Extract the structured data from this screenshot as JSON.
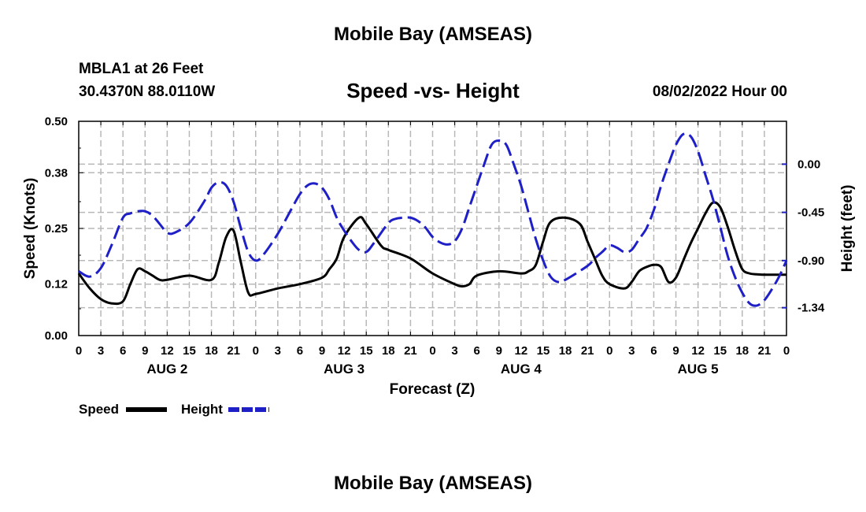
{
  "header": {
    "title": "Mobile Bay (AMSEAS)",
    "station": "MBLA1 at 26 Feet",
    "coords": "30.4370N  88.0110W",
    "subtitle": "Speed -vs- Height",
    "datetime": "08/02/2022 Hour 00",
    "footer_title": "Mobile Bay (AMSEAS)"
  },
  "chart_data": {
    "type": "line",
    "title": "Speed -vs- Height",
    "xlabel": "Forecast (Z)",
    "ylabel": "Speed (Knots)",
    "y2label": "Height (feet)",
    "xlim": [
      0,
      96
    ],
    "ylim": [
      0,
      0.5
    ],
    "y2lim": [
      -1.6,
      0.4
    ],
    "x_tick_labels": [
      "0",
      "3",
      "6",
      "9",
      "12",
      "15",
      "18",
      "21",
      "0",
      "3",
      "6",
      "9",
      "12",
      "15",
      "18",
      "21",
      "0",
      "3",
      "6",
      "9",
      "12",
      "15",
      "18",
      "21",
      "0",
      "3",
      "6",
      "9",
      "12",
      "15",
      "18",
      "21",
      "0"
    ],
    "day_labels": [
      {
        "label": "AUG 2",
        "hour": 12
      },
      {
        "label": "AUG 3",
        "hour": 36
      },
      {
        "label": "AUG 4",
        "hour": 60
      },
      {
        "label": "AUG 5",
        "hour": 84
      }
    ],
    "y_ticks": [
      0.0,
      0.12,
      0.25,
      0.38,
      0.5
    ],
    "y_tick_labels": [
      "0.00",
      "0.12",
      "0.25",
      "0.38",
      "0.50"
    ],
    "y2_ticks": [
      0.0,
      -0.45,
      -0.9,
      -1.34
    ],
    "y2_tick_labels": [
      "0.00",
      "-0.45",
      "-0.90",
      "-1.34"
    ],
    "legend": [
      "Speed",
      "Height"
    ],
    "colors": {
      "speed": "#000000",
      "height": "#1f1fc8",
      "grid": "#b8b8b8"
    },
    "series": [
      {
        "name": "Speed",
        "axis": "left",
        "x": [
          0,
          1.5,
          3,
          4.5,
          6,
          7,
          8,
          9,
          10,
          11,
          12,
          15,
          18,
          19,
          20,
          21,
          22,
          23,
          24,
          27,
          30,
          33,
          34,
          35,
          36,
          38,
          39,
          41,
          42,
          45,
          48,
          51,
          52,
          53,
          54,
          57,
          60,
          61,
          62,
          63,
          64,
          66,
          68,
          69,
          70,
          71,
          72,
          74,
          75,
          76,
          77,
          78,
          79,
          80,
          81,
          82,
          83,
          84,
          85,
          86,
          87,
          88,
          89,
          90,
          91,
          92,
          93,
          96
        ],
        "values": [
          0.145,
          0.11,
          0.085,
          0.075,
          0.08,
          0.12,
          0.155,
          0.15,
          0.14,
          0.13,
          0.13,
          0.14,
          0.13,
          0.17,
          0.23,
          0.245,
          0.17,
          0.1,
          0.097,
          0.11,
          0.12,
          0.135,
          0.155,
          0.18,
          0.23,
          0.275,
          0.26,
          0.21,
          0.2,
          0.18,
          0.145,
          0.12,
          0.115,
          0.12,
          0.14,
          0.15,
          0.145,
          0.15,
          0.165,
          0.22,
          0.265,
          0.275,
          0.26,
          0.22,
          0.18,
          0.14,
          0.12,
          0.11,
          0.125,
          0.15,
          0.16,
          0.165,
          0.16,
          0.125,
          0.135,
          0.175,
          0.215,
          0.25,
          0.285,
          0.31,
          0.3,
          0.255,
          0.2,
          0.155,
          0.145,
          0.143,
          0.142,
          0.142
        ]
      },
      {
        "name": "Height",
        "axis": "right",
        "x": [
          0,
          1.5,
          3,
          4.5,
          6,
          7,
          8,
          9,
          10,
          11,
          12,
          13,
          15,
          17,
          18,
          19,
          20,
          21,
          22,
          23,
          24,
          25,
          27,
          29,
          30,
          31,
          32,
          33,
          34,
          35,
          36,
          37,
          38,
          39,
          40,
          42,
          43,
          44,
          45,
          46,
          47,
          48,
          49,
          50,
          51,
          52,
          53,
          54,
          55,
          56,
          57,
          58,
          59,
          60,
          61,
          62,
          63,
          64,
          65,
          66,
          69,
          70,
          71,
          72,
          73,
          74,
          75,
          76,
          77,
          78,
          79,
          80,
          81,
          82,
          83,
          84,
          85,
          86,
          87,
          88,
          89,
          90,
          91,
          92,
          93,
          94,
          95,
          96
        ],
        "values": [
          -1.0,
          -1.05,
          -0.97,
          -0.75,
          -0.5,
          -0.46,
          -0.44,
          -0.44,
          -0.48,
          -0.56,
          -0.64,
          -0.64,
          -0.55,
          -0.35,
          -0.22,
          -0.17,
          -0.2,
          -0.35,
          -0.6,
          -0.82,
          -0.9,
          -0.85,
          -0.65,
          -0.4,
          -0.28,
          -0.2,
          -0.18,
          -0.22,
          -0.33,
          -0.5,
          -0.62,
          -0.72,
          -0.8,
          -0.82,
          -0.74,
          -0.55,
          -0.51,
          -0.5,
          -0.5,
          -0.53,
          -0.59,
          -0.68,
          -0.73,
          -0.75,
          -0.72,
          -0.6,
          -0.4,
          -0.2,
          0.0,
          0.18,
          0.22,
          0.18,
          0.0,
          -0.2,
          -0.45,
          -0.7,
          -0.9,
          -1.05,
          -1.1,
          -1.08,
          -0.95,
          -0.88,
          -0.82,
          -0.76,
          -0.78,
          -0.82,
          -0.8,
          -0.7,
          -0.6,
          -0.43,
          -0.2,
          0.0,
          0.18,
          0.28,
          0.26,
          0.12,
          -0.1,
          -0.32,
          -0.58,
          -0.85,
          -1.05,
          -1.2,
          -1.3,
          -1.32,
          -1.27,
          -1.17,
          -1.05,
          -0.9
        ]
      }
    ]
  }
}
